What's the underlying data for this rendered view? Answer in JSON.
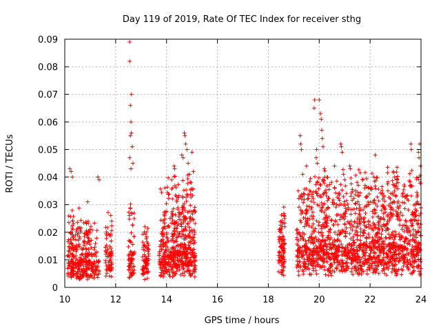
{
  "chart_data": {
    "type": "scatter",
    "title": "Day 119 of 2019, Rate Of TEC Index for receiver sthg",
    "xlabel": "GPS time / hours",
    "ylabel": "ROTI / TECUs",
    "xlim": [
      10,
      24
    ],
    "ylim": [
      0,
      0.09
    ],
    "grid": true,
    "marker": "+",
    "color": "#ff0000",
    "xticks": [
      10,
      12,
      14,
      16,
      18,
      20,
      22,
      24
    ],
    "xtick_labels": [
      "10",
      "12",
      "14",
      "16",
      "18",
      "20",
      "22",
      "24"
    ],
    "yticks": [
      0,
      0.01,
      0.02,
      0.03,
      0.04,
      0.05,
      0.06,
      0.07,
      0.08,
      0.09
    ],
    "ytick_labels": [
      "0",
      "0.01",
      "0.02",
      "0.03",
      "0.04",
      "0.05",
      "0.06",
      "0.07",
      "0.08",
      "0.09"
    ],
    "clusters": [
      {
        "x_range": [
          10.1,
          10.95
        ],
        "y_base": 0.008,
        "y_spread": 0.02,
        "count": 260
      },
      {
        "x_range": [
          10.95,
          11.35
        ],
        "y_base": 0.008,
        "y_spread": 0.015,
        "count": 80
      },
      {
        "x_range": [
          11.6,
          11.85
        ],
        "y_base": 0.01,
        "y_spread": 0.018,
        "count": 70
      },
      {
        "x_range": [
          12.5,
          12.75
        ],
        "y_base": 0.008,
        "y_spread": 0.025,
        "count": 70
      },
      {
        "x_range": [
          13.05,
          13.3
        ],
        "y_base": 0.008,
        "y_spread": 0.015,
        "count": 70
      },
      {
        "x_range": [
          13.7,
          15.15
        ],
        "y_base": 0.01,
        "y_spread": 0.03,
        "count": 520
      },
      {
        "x_range": [
          18.4,
          18.65
        ],
        "y_base": 0.012,
        "y_spread": 0.018,
        "count": 90
      },
      {
        "x_range": [
          19.1,
          24.0
        ],
        "y_base": 0.012,
        "y_spread": 0.03,
        "count": 1500
      }
    ],
    "high_points": [
      {
        "x": 10.2,
        "y": 0.043
      },
      {
        "x": 10.25,
        "y": 0.042
      },
      {
        "x": 10.3,
        "y": 0.04
      },
      {
        "x": 10.9,
        "y": 0.031
      },
      {
        "x": 11.3,
        "y": 0.04
      },
      {
        "x": 11.35,
        "y": 0.039
      },
      {
        "x": 12.55,
        "y": 0.089
      },
      {
        "x": 12.55,
        "y": 0.082
      },
      {
        "x": 12.62,
        "y": 0.07
      },
      {
        "x": 12.58,
        "y": 0.066
      },
      {
        "x": 12.6,
        "y": 0.06
      },
      {
        "x": 12.58,
        "y": 0.055
      },
      {
        "x": 12.65,
        "y": 0.051
      },
      {
        "x": 12.55,
        "y": 0.047
      },
      {
        "x": 12.6,
        "y": 0.043
      },
      {
        "x": 12.62,
        "y": 0.056
      },
      {
        "x": 12.68,
        "y": 0.045
      },
      {
        "x": 13.15,
        "y": 0.022
      },
      {
        "x": 14.3,
        "y": 0.044
      },
      {
        "x": 14.32,
        "y": 0.043
      },
      {
        "x": 14.6,
        "y": 0.048
      },
      {
        "x": 14.65,
        "y": 0.047
      },
      {
        "x": 14.7,
        "y": 0.056
      },
      {
        "x": 14.72,
        "y": 0.055
      },
      {
        "x": 14.75,
        "y": 0.052
      },
      {
        "x": 14.8,
        "y": 0.05
      },
      {
        "x": 14.85,
        "y": 0.045
      },
      {
        "x": 15.0,
        "y": 0.049
      },
      {
        "x": 15.05,
        "y": 0.042
      },
      {
        "x": 14.2,
        "y": 0.039
      },
      {
        "x": 19.25,
        "y": 0.055
      },
      {
        "x": 19.27,
        "y": 0.052
      },
      {
        "x": 19.3,
        "y": 0.05
      },
      {
        "x": 19.35,
        "y": 0.041
      },
      {
        "x": 19.5,
        "y": 0.044
      },
      {
        "x": 19.8,
        "y": 0.065
      },
      {
        "x": 19.82,
        "y": 0.068
      },
      {
        "x": 20.0,
        "y": 0.068
      },
      {
        "x": 20.05,
        "y": 0.063
      },
      {
        "x": 20.08,
        "y": 0.061
      },
      {
        "x": 20.1,
        "y": 0.057
      },
      {
        "x": 20.12,
        "y": 0.054
      },
      {
        "x": 20.15,
        "y": 0.051
      },
      {
        "x": 19.9,
        "y": 0.05
      },
      {
        "x": 19.88,
        "y": 0.047
      },
      {
        "x": 19.92,
        "y": 0.045
      },
      {
        "x": 20.2,
        "y": 0.043
      },
      {
        "x": 20.3,
        "y": 0.04
      },
      {
        "x": 20.85,
        "y": 0.052
      },
      {
        "x": 20.87,
        "y": 0.051
      },
      {
        "x": 20.9,
        "y": 0.049
      },
      {
        "x": 20.6,
        "y": 0.044
      },
      {
        "x": 20.95,
        "y": 0.041
      },
      {
        "x": 21.0,
        "y": 0.039
      },
      {
        "x": 21.2,
        "y": 0.044
      },
      {
        "x": 21.22,
        "y": 0.043
      },
      {
        "x": 21.7,
        "y": 0.039
      },
      {
        "x": 21.8,
        "y": 0.037
      },
      {
        "x": 22.2,
        "y": 0.048
      },
      {
        "x": 22.15,
        "y": 0.04
      },
      {
        "x": 23.05,
        "y": 0.039
      },
      {
        "x": 23.1,
        "y": 0.038
      },
      {
        "x": 23.6,
        "y": 0.052
      },
      {
        "x": 23.62,
        "y": 0.05
      },
      {
        "x": 23.9,
        "y": 0.049
      },
      {
        "x": 23.95,
        "y": 0.052
      },
      {
        "x": 23.98,
        "y": 0.044
      },
      {
        "x": 23.92,
        "y": 0.047
      },
      {
        "x": 23.4,
        "y": 0.033
      },
      {
        "x": 22.7,
        "y": 0.035
      },
      {
        "x": 22.5,
        "y": 0.032
      }
    ]
  }
}
